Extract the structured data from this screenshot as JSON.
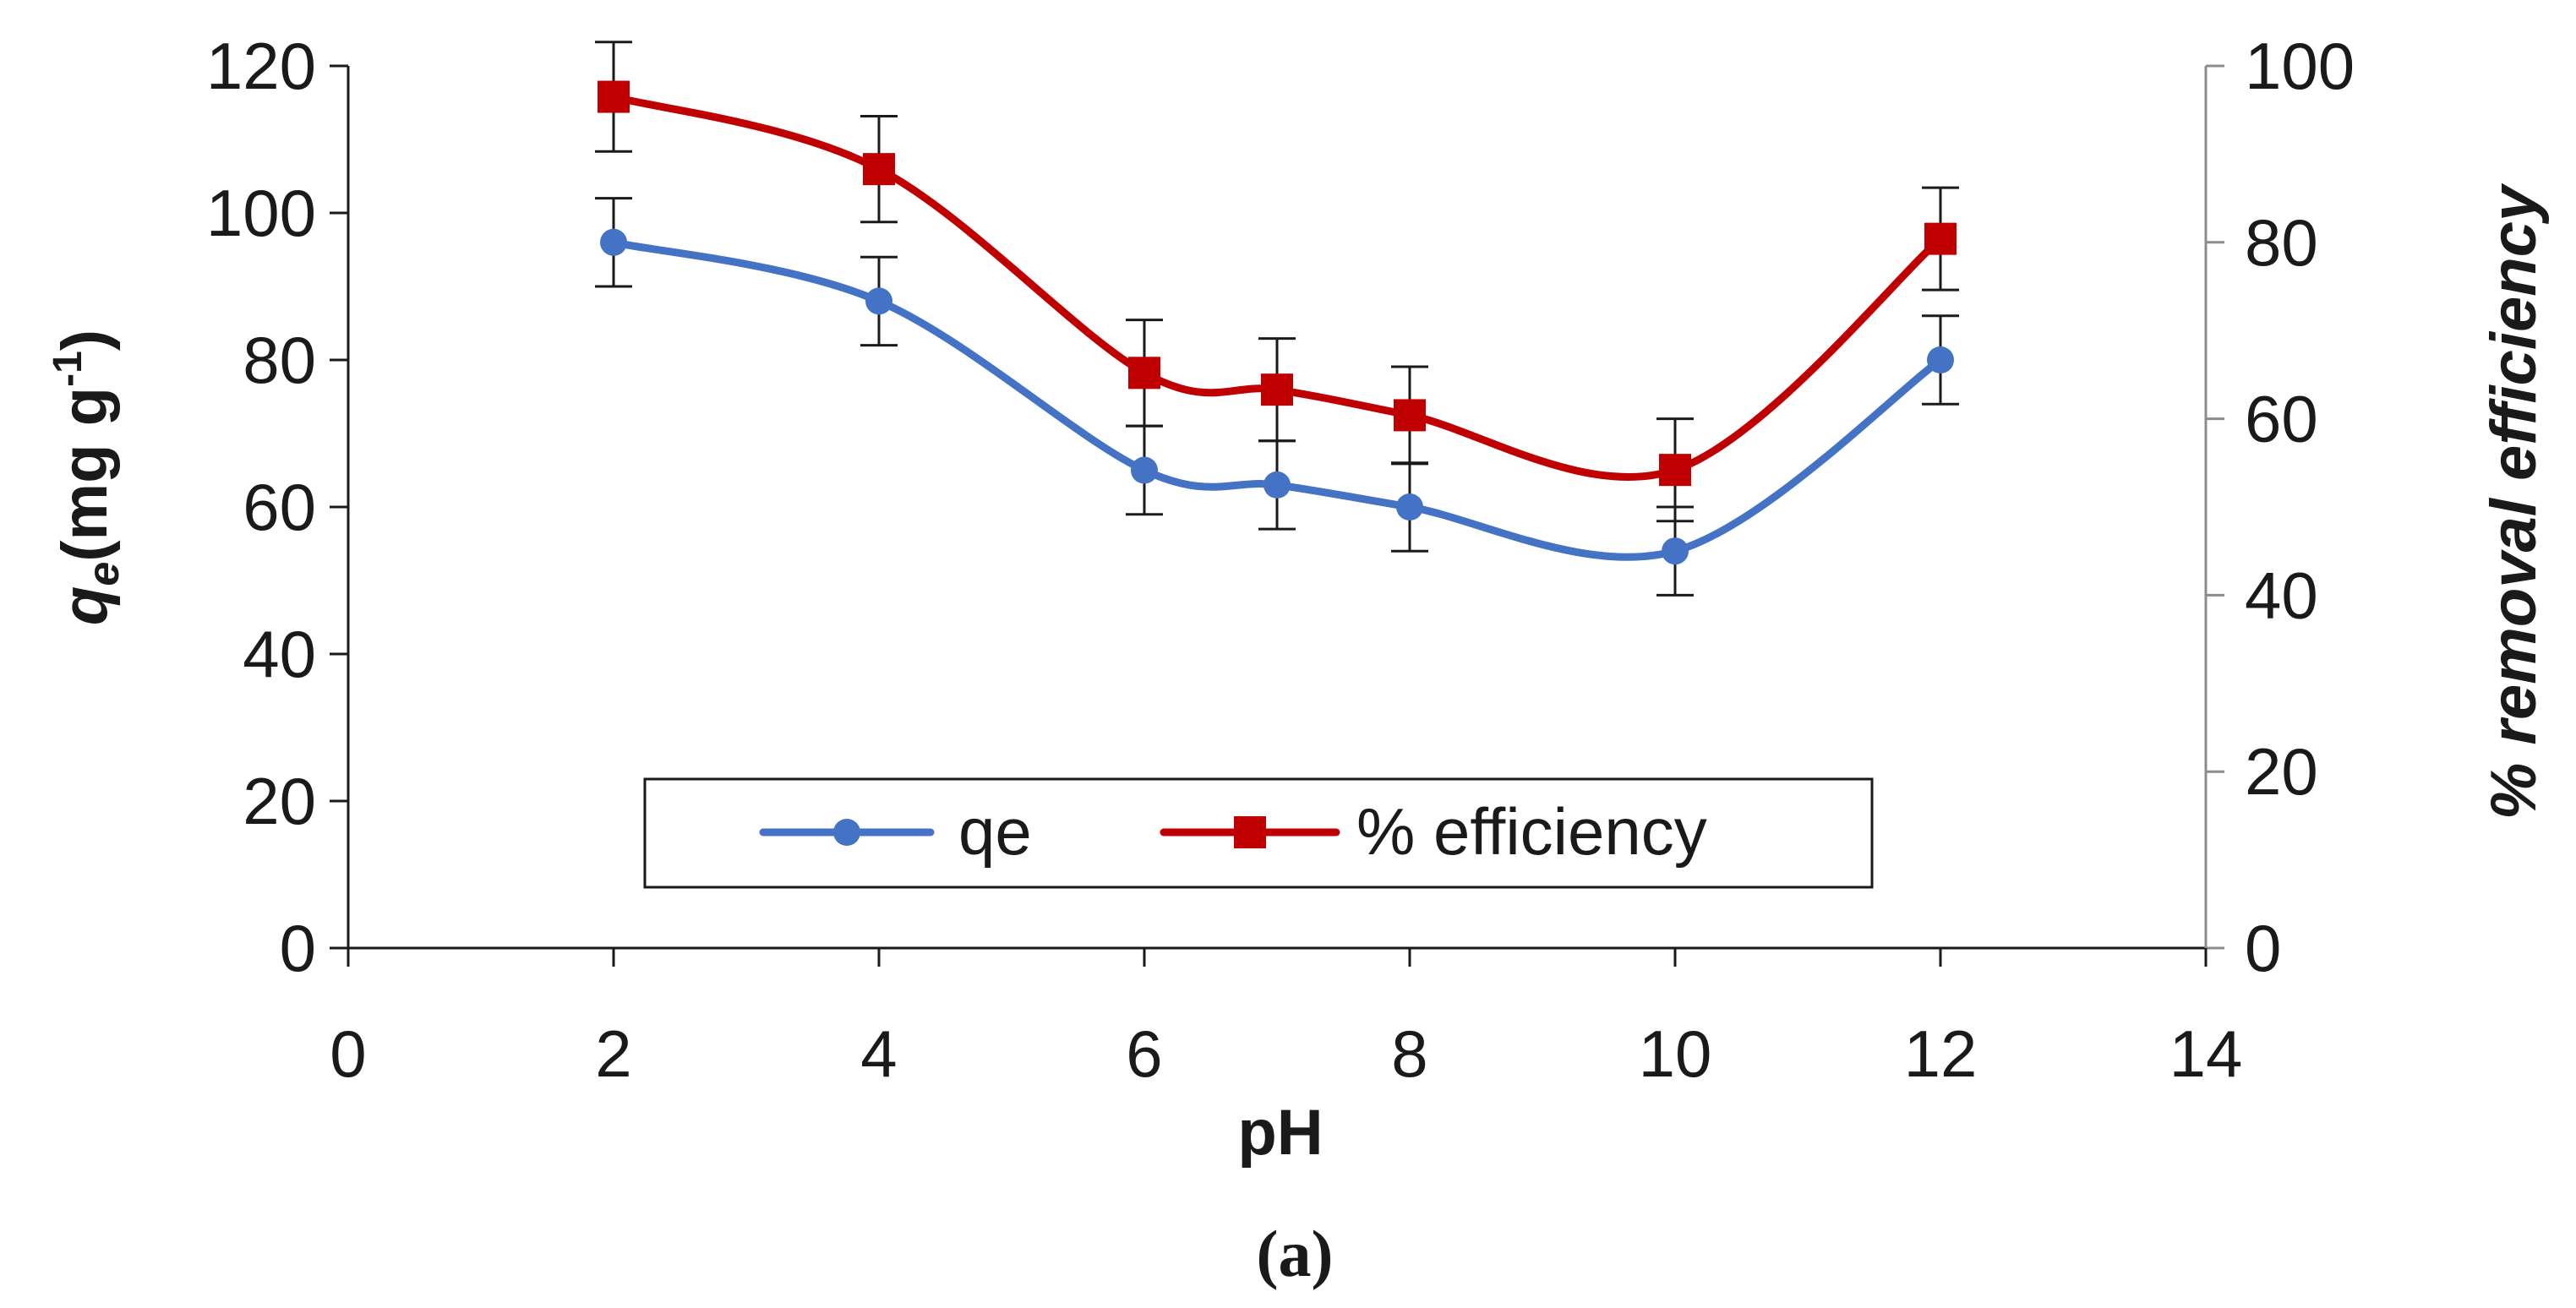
{
  "chart_data": {
    "type": "line",
    "title": "",
    "caption": "(a)",
    "xlabel": "pH",
    "ylabel": {
      "main": "q",
      "sub": "e",
      "unit_open": "(mg g",
      "exp": "-1",
      "unit_close": ")"
    },
    "y2label": "% removal efficiency",
    "xlim": [
      0,
      14
    ],
    "ylim": [
      0,
      120
    ],
    "y2lim": [
      0,
      100
    ],
    "xticks": [
      0,
      2,
      4,
      6,
      8,
      10,
      12,
      14
    ],
    "yticks": [
      0,
      20,
      40,
      60,
      80,
      100,
      120
    ],
    "y2ticks": [
      0,
      20,
      40,
      60,
      80,
      100
    ],
    "x": [
      2,
      4,
      6,
      7,
      8,
      10,
      12
    ],
    "series": [
      {
        "name": "qe",
        "axis": "left",
        "color": "#4472C4",
        "marker": "circle",
        "values": [
          96,
          88,
          65,
          63,
          60,
          54,
          80
        ],
        "error": [
          6,
          6,
          6,
          6,
          6,
          6,
          6
        ]
      },
      {
        "name": "% efficiency",
        "axis": "right",
        "color": "#C00000",
        "marker": "square",
        "values": [
          96.5,
          88.3,
          65.2,
          63.3,
          60.4,
          54.2,
          80.4
        ],
        "error": [
          6.2,
          6,
          6,
          5.8,
          5.5,
          5.8,
          5.8
        ]
      }
    ],
    "legend": {
      "position": "bottom-center",
      "entries": [
        "qe",
        "% efficiency"
      ]
    }
  }
}
